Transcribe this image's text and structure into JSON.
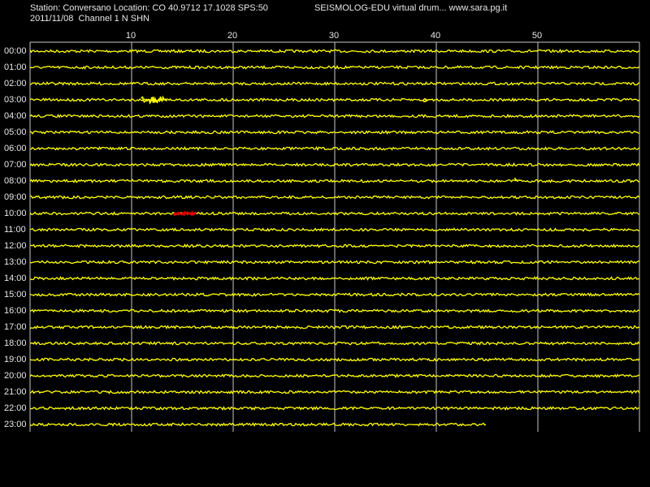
{
  "chart_data": {
    "type": "seismogram",
    "header": "Station: Conversano Location: CO 40.9712 17.1028 SPS:50",
    "brand": "SEISMOLOG-EDU virtual drum... www.sara.pg.it",
    "subheader": "2011/11/08  Channel 1 N SHN",
    "categories": [
      "00:00",
      "01:00",
      "02:00",
      "03:00",
      "04:00",
      "05:00",
      "06:00",
      "07:00",
      "08:00",
      "09:00",
      "10:00",
      "11:00",
      "12:00",
      "13:00",
      "14:00",
      "15:00",
      "16:00",
      "17:00",
      "18:00",
      "19:00",
      "20:00",
      "21:00",
      "22:00",
      "23:00"
    ],
    "xlim": [
      0,
      60
    ],
    "xticks": [
      10,
      20,
      30,
      40,
      50
    ],
    "grid": true,
    "trace_color": "#ffff00",
    "grid_color": "#c8c8c8",
    "last_trace_end": 45,
    "events": [
      {
        "row": "03:00",
        "start": 11,
        "end": 13.6,
        "color": "#ffff00"
      },
      {
        "row": "03:00",
        "start": 38.8,
        "end": 39.2,
        "color": "#ffff00"
      },
      {
        "row": "08:00",
        "start": 47.8,
        "end": 48.1,
        "color": "#ffff00"
      },
      {
        "row": "10:00",
        "start": 14.2,
        "end": 16.5,
        "color": "#e00000"
      }
    ]
  }
}
